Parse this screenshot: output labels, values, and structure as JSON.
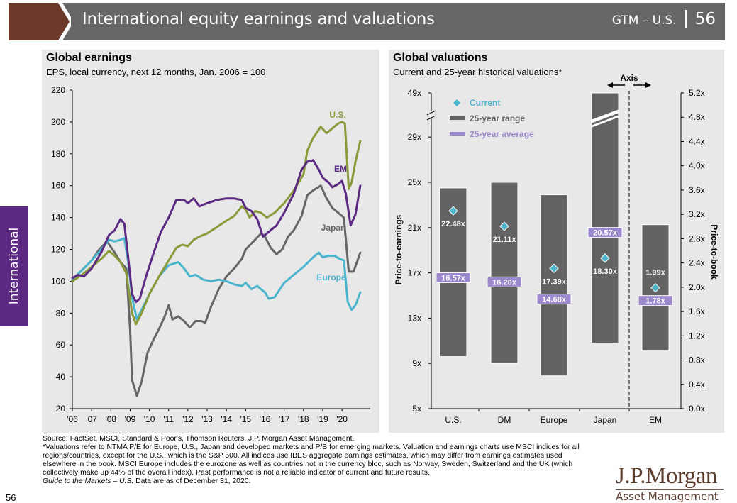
{
  "header": {
    "title": "International equity earnings and valuations",
    "guide": "GTM – U.S.",
    "page": "56"
  },
  "side_tab": {
    "label": "International"
  },
  "colors": {
    "header_bg": "#666666",
    "header_accent": "#6b3a2a",
    "side_tab": "#5c2a82",
    "panel_bg": "#e8e8e8",
    "us": "#8a9a3a",
    "em": "#5c2a82",
    "japan": "#666666",
    "europe": "#4ab4cc",
    "range_bar": "#636363",
    "average": "#9c88cc",
    "current": "#4ab4cc"
  },
  "chart_data": [
    {
      "type": "line",
      "title": "Global earnings",
      "subtitle": "EPS, local currency, next 12 months, Jan. 2006 = 100",
      "xlabel": "",
      "ylabel": "",
      "ylim": [
        20,
        220
      ],
      "yticks": [
        20,
        40,
        60,
        80,
        100,
        120,
        140,
        160,
        180,
        200,
        220
      ],
      "xlim": [
        2006.0,
        2021.0
      ],
      "xticks": [
        {
          "value": 2006,
          "label": "'06"
        },
        {
          "value": 2007,
          "label": "'07"
        },
        {
          "value": 2008,
          "label": "'08"
        },
        {
          "value": 2009,
          "label": "'09"
        },
        {
          "value": 2010,
          "label": "'10"
        },
        {
          "value": 2011,
          "label": "'11"
        },
        {
          "value": 2012,
          "label": "'12"
        },
        {
          "value": 2013,
          "label": "'13"
        },
        {
          "value": 2014,
          "label": "'14"
        },
        {
          "value": 2015,
          "label": "'15"
        },
        {
          "value": 2016,
          "label": "'16"
        },
        {
          "value": 2017,
          "label": "'17"
        },
        {
          "value": 2018,
          "label": "'18"
        },
        {
          "value": 2019,
          "label": "'19"
        },
        {
          "value": 2020,
          "label": "'20"
        }
      ],
      "grid": false,
      "legend": "inline-labels",
      "series": [
        {
          "name": "U.S.",
          "key": "us",
          "points": [
            [
              2006.0,
              100
            ],
            [
              2006.5,
              104
            ],
            [
              2007.0,
              109
            ],
            [
              2007.5,
              114
            ],
            [
              2007.9,
              119
            ],
            [
              2008.2,
              116
            ],
            [
              2008.5,
              112
            ],
            [
              2008.8,
              105
            ],
            [
              2009.1,
              80
            ],
            [
              2009.3,
              73
            ],
            [
              2009.6,
              80
            ],
            [
              2010.0,
              92
            ],
            [
              2010.5,
              103
            ],
            [
              2011.0,
              113
            ],
            [
              2011.4,
              121
            ],
            [
              2011.7,
              123
            ],
            [
              2012.0,
              122
            ],
            [
              2012.3,
              126
            ],
            [
              2012.6,
              128
            ],
            [
              2013.0,
              130
            ],
            [
              2013.5,
              134
            ],
            [
              2014.0,
              138
            ],
            [
              2014.4,
              141
            ],
            [
              2014.8,
              147
            ],
            [
              2015.0,
              145
            ],
            [
              2015.2,
              140
            ],
            [
              2015.5,
              144
            ],
            [
              2015.8,
              143
            ],
            [
              2016.1,
              140
            ],
            [
              2016.5,
              143
            ],
            [
              2017.0,
              149
            ],
            [
              2017.5,
              157
            ],
            [
              2018.0,
              167
            ],
            [
              2018.2,
              182
            ],
            [
              2018.5,
              190
            ],
            [
              2018.9,
              197
            ],
            [
              2019.2,
              193
            ],
            [
              2019.5,
              196
            ],
            [
              2019.8,
              199
            ],
            [
              2020.0,
              200
            ],
            [
              2020.15,
              199
            ],
            [
              2020.35,
              158
            ],
            [
              2020.5,
              162
            ],
            [
              2020.7,
              175
            ],
            [
              2020.95,
              188
            ]
          ]
        },
        {
          "name": "EM",
          "key": "em",
          "points": [
            [
              2006.0,
              102
            ],
            [
              2006.3,
              104
            ],
            [
              2006.6,
              103
            ],
            [
              2007.0,
              108
            ],
            [
              2007.5,
              118
            ],
            [
              2007.9,
              129
            ],
            [
              2008.2,
              132
            ],
            [
              2008.5,
              139
            ],
            [
              2008.7,
              136
            ],
            [
              2008.9,
              115
            ],
            [
              2009.1,
              92
            ],
            [
              2009.3,
              87
            ],
            [
              2009.5,
              89
            ],
            [
              2009.8,
              102
            ],
            [
              2010.2,
              117
            ],
            [
              2010.6,
              131
            ],
            [
              2011.0,
              140
            ],
            [
              2011.4,
              151
            ],
            [
              2011.8,
              151
            ],
            [
              2012.0,
              149
            ],
            [
              2012.3,
              152
            ],
            [
              2012.6,
              147
            ],
            [
              2013.0,
              149
            ],
            [
              2013.5,
              151
            ],
            [
              2014.0,
              152
            ],
            [
              2014.4,
              152
            ],
            [
              2014.8,
              151
            ],
            [
              2015.0,
              146
            ],
            [
              2015.3,
              144
            ],
            [
              2015.6,
              139
            ],
            [
              2015.9,
              128
            ],
            [
              2016.2,
              131
            ],
            [
              2016.6,
              135
            ],
            [
              2017.0,
              143
            ],
            [
              2017.5,
              155
            ],
            [
              2017.9,
              170
            ],
            [
              2018.2,
              175
            ],
            [
              2018.5,
              176
            ],
            [
              2018.8,
              170
            ],
            [
              2019.0,
              165
            ],
            [
              2019.3,
              162
            ],
            [
              2019.5,
              159
            ],
            [
              2019.8,
              161
            ],
            [
              2020.0,
              163
            ],
            [
              2020.2,
              155
            ],
            [
              2020.45,
              135
            ],
            [
              2020.7,
              142
            ],
            [
              2020.95,
              160
            ]
          ]
        },
        {
          "name": "Japan",
          "key": "japan",
          "points": [
            [
              2006.0,
              101
            ],
            [
              2006.5,
              107
            ],
            [
              2007.0,
              113
            ],
            [
              2007.4,
              120
            ],
            [
              2007.8,
              125
            ],
            [
              2008.2,
              118
            ],
            [
              2008.5,
              112
            ],
            [
              2008.8,
              108
            ],
            [
              2009.0,
              70
            ],
            [
              2009.1,
              38
            ],
            [
              2009.35,
              28
            ],
            [
              2009.6,
              37
            ],
            [
              2009.9,
              55
            ],
            [
              2010.2,
              63
            ],
            [
              2010.5,
              70
            ],
            [
              2010.8,
              78
            ],
            [
              2011.0,
              85
            ],
            [
              2011.2,
              76
            ],
            [
              2011.5,
              78
            ],
            [
              2011.8,
              75
            ],
            [
              2012.1,
              71
            ],
            [
              2012.4,
              75
            ],
            [
              2012.7,
              75
            ],
            [
              2012.9,
              74
            ],
            [
              2013.2,
              84
            ],
            [
              2013.6,
              95
            ],
            [
              2014.0,
              103
            ],
            [
              2014.4,
              108
            ],
            [
              2014.8,
              114
            ],
            [
              2015.0,
              120
            ],
            [
              2015.4,
              125
            ],
            [
              2015.8,
              130
            ],
            [
              2016.0,
              128
            ],
            [
              2016.3,
              121
            ],
            [
              2016.6,
              117
            ],
            [
              2016.9,
              120
            ],
            [
              2017.2,
              128
            ],
            [
              2017.5,
              132
            ],
            [
              2017.9,
              141
            ],
            [
              2018.2,
              154
            ],
            [
              2018.5,
              157
            ],
            [
              2018.9,
              160
            ],
            [
              2019.2,
              152
            ],
            [
              2019.5,
              146
            ],
            [
              2019.8,
              143
            ],
            [
              2020.1,
              140
            ],
            [
              2020.35,
              106
            ],
            [
              2020.6,
              106
            ],
            [
              2020.95,
              118
            ]
          ]
        },
        {
          "name": "Europe",
          "key": "europe",
          "points": [
            [
              2006.0,
              101
            ],
            [
              2006.5,
              107
            ],
            [
              2007.0,
              113
            ],
            [
              2007.5,
              120
            ],
            [
              2007.9,
              126
            ],
            [
              2008.2,
              125
            ],
            [
              2008.5,
              126
            ],
            [
              2008.7,
              127
            ],
            [
              2008.9,
              112
            ],
            [
              2009.1,
              90
            ],
            [
              2009.35,
              76
            ],
            [
              2009.6,
              82
            ],
            [
              2010.0,
              92
            ],
            [
              2010.5,
              103
            ],
            [
              2011.0,
              110
            ],
            [
              2011.5,
              112
            ],
            [
              2011.8,
              108
            ],
            [
              2012.1,
              103
            ],
            [
              2012.4,
              104
            ],
            [
              2012.8,
              101
            ],
            [
              2013.2,
              100
            ],
            [
              2013.6,
              101
            ],
            [
              2014.0,
              100
            ],
            [
              2014.4,
              98
            ],
            [
              2014.8,
              97
            ],
            [
              2015.0,
              99
            ],
            [
              2015.3,
              95
            ],
            [
              2015.6,
              97
            ],
            [
              2016.0,
              93
            ],
            [
              2016.2,
              89
            ],
            [
              2016.5,
              90
            ],
            [
              2017.0,
              99
            ],
            [
              2017.5,
              104
            ],
            [
              2018.0,
              109
            ],
            [
              2018.5,
              115
            ],
            [
              2018.8,
              118
            ],
            [
              2019.0,
              115
            ],
            [
              2019.3,
              116
            ],
            [
              2019.6,
              116
            ],
            [
              2019.9,
              114
            ],
            [
              2020.1,
              113
            ],
            [
              2020.3,
              87
            ],
            [
              2020.5,
              82
            ],
            [
              2020.7,
              85
            ],
            [
              2020.95,
              93
            ]
          ]
        }
      ]
    },
    {
      "type": "bar",
      "title": "Global valuations",
      "subtitle": "Current and 25-year historical valuations*",
      "categories": [
        "U.S.",
        "DM",
        "Europe",
        "Japan",
        "EM"
      ],
      "ylabel": "Price-to-earnings",
      "ylabel_right": "Price-to-book",
      "axis_annotation": "Axis",
      "ylim": [
        5,
        49
      ],
      "yticks_left": [
        "5x",
        "9x",
        "13x",
        "17x",
        "21x",
        "25x",
        "29x",
        "49x"
      ],
      "yticks_left_values": [
        5,
        9,
        13,
        17,
        21,
        25,
        29,
        49
      ],
      "axis_break_between": [
        29,
        49
      ],
      "ylim_right": [
        0.0,
        5.2
      ],
      "yticks_right": [
        "0.0x",
        "0.4x",
        "0.8x",
        "1.2x",
        "1.6x",
        "2.0x",
        "2.4x",
        "2.8x",
        "3.2x",
        "3.6x",
        "4.0x",
        "4.4x",
        "4.8x",
        "5.2x"
      ],
      "legend": {
        "placement": "top-left",
        "items": [
          {
            "label": "Current",
            "marker": "diamond"
          },
          {
            "label": "25-year range",
            "marker": "bar"
          },
          {
            "label": "25-year average",
            "marker": "line"
          }
        ]
      },
      "series": [
        {
          "category": "U.S.",
          "axis": "left",
          "range_low": 9.6,
          "range_high": 24.5,
          "current": 22.48,
          "current_label": "22.48x",
          "average": 16.57,
          "average_label": "16.57x"
        },
        {
          "category": "DM",
          "axis": "left",
          "range_low": 9.0,
          "range_high": 25.0,
          "current": 21.11,
          "current_label": "21.11x",
          "average": 16.2,
          "average_label": "16.20x"
        },
        {
          "category": "Europe",
          "axis": "left",
          "range_low": 7.9,
          "range_high": 23.9,
          "current": 17.39,
          "current_label": "17.39x",
          "average": 14.68,
          "average_label": "14.68x"
        },
        {
          "category": "Japan",
          "axis": "left",
          "range_low": 10.8,
          "range_high": 49.0,
          "range_high_broken": true,
          "current": 18.3,
          "current_label": "18.30x",
          "average": 20.57,
          "average_label": "20.57x"
        },
        {
          "category": "EM",
          "axis": "right",
          "range_low": 0.95,
          "range_high": 3.03,
          "current": 1.99,
          "current_label": "1.99x",
          "average": 1.78,
          "average_label": "1.78x"
        }
      ]
    }
  ],
  "footnotes": {
    "source": "Source: FactSet, MSCI, Standard & Poor's, Thomson Reuters, J.P. Morgan Asset Management.",
    "note": "*Valuations refer to NTMA P/E for Europe, U.S., Japan and developed markets and P/B for emerging markets. Valuation and earnings charts use MSCI indices for all regions/countries, except for the U.S., which is the S&P 500. All indices use IBES aggregate earnings estimates, which may differ from earnings estimates used elsewhere in the book. MSCI Europe includes the eurozone as well as countries not in the currency bloc, such as Norway, Sweden, Switzerland and the UK (which collectively make up 44% of the overall index). Past performance is not a reliable indicator of current and future results.",
    "guide_italic": "Guide to the Markets – U.S.",
    "data_as_of": " Data are as of December 31, 2020."
  },
  "page_number": "56",
  "logo": {
    "main": "J.P.Morgan",
    "sub": "Asset Management"
  }
}
